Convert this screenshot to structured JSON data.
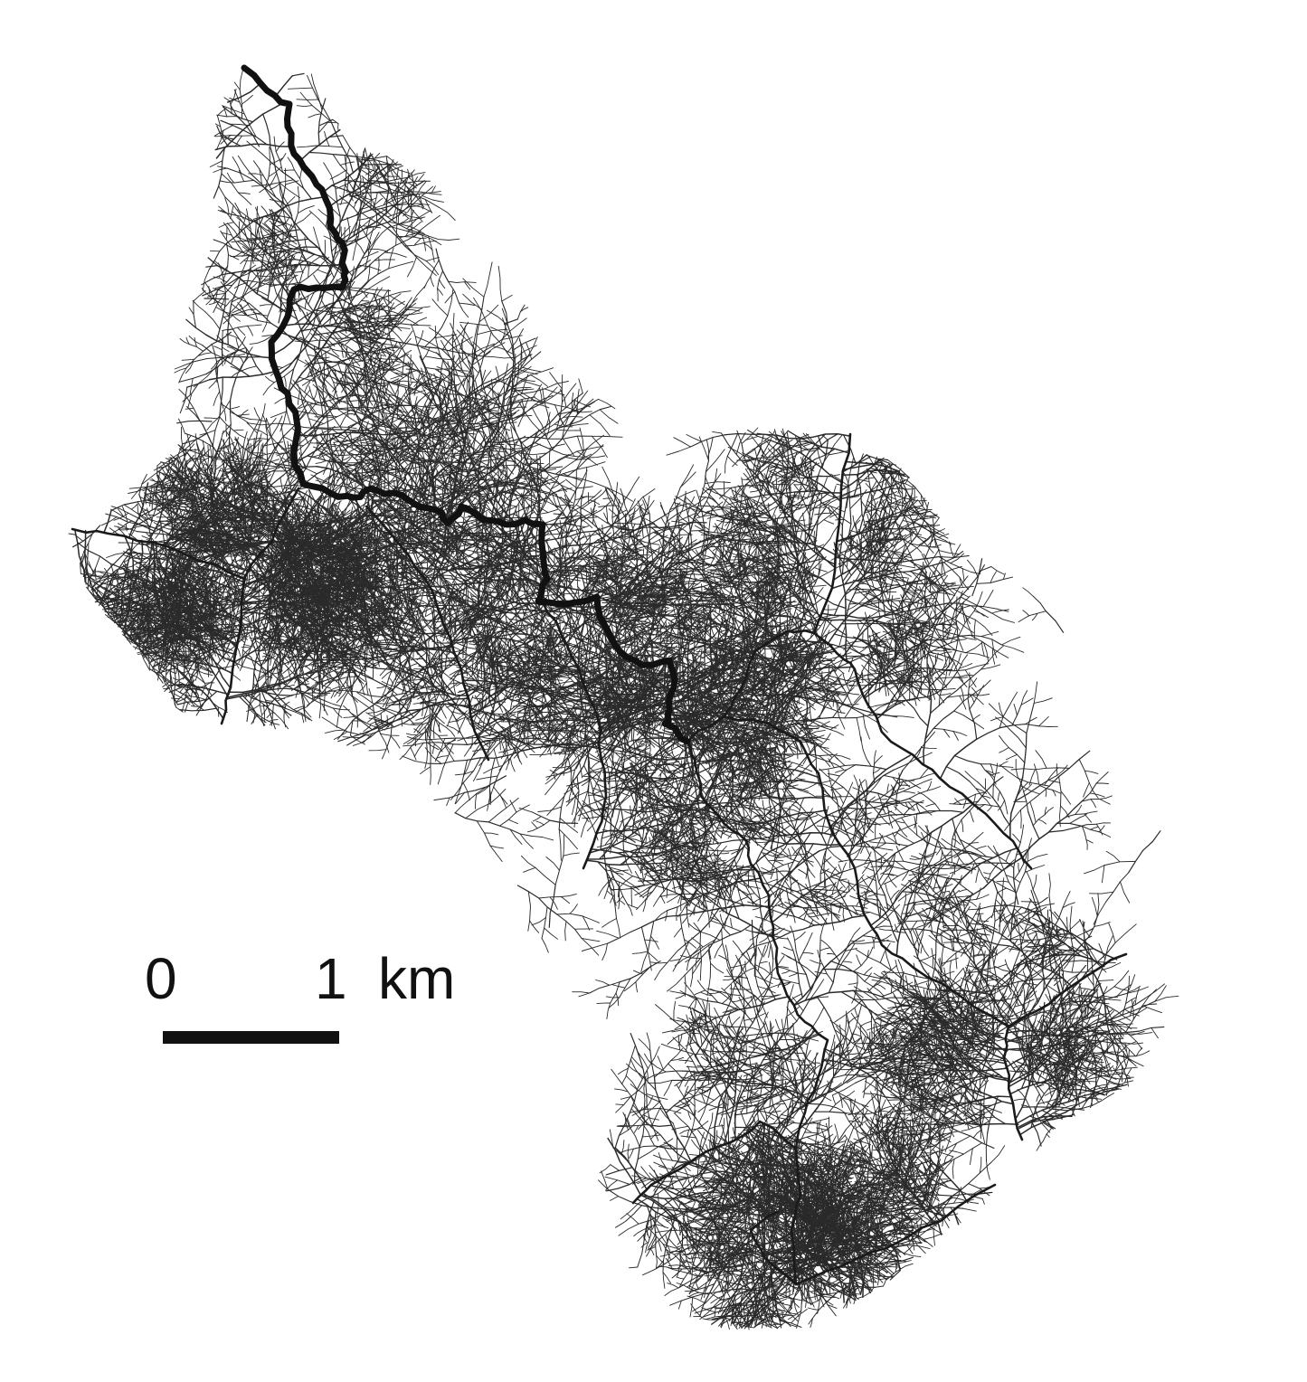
{
  "map": {
    "colors": {
      "background": "#ffffff",
      "main_channel": "#111111",
      "tributary": "#1a1a1a",
      "rill": "#2a2a2a"
    },
    "scale_bar": {
      "start_label": "0",
      "end_label": "1",
      "unit_label": "km",
      "length_km": 1
    }
  }
}
